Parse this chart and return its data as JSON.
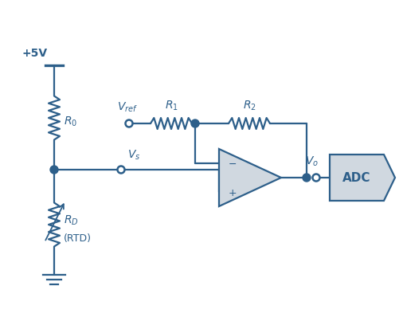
{
  "bg_color": "#ffffff",
  "circuit_color": "#2d5f8a",
  "adc_fill": "#d0d8e0",
  "opamp_fill": "#d0d8e0",
  "wire_lw": 1.6,
  "resistor_lw": 1.6,
  "supply_voltage": "+5V",
  "labels": {
    "RTD": "(RTD)",
    "ADC": "ADC",
    "minus": "−",
    "plus": "+"
  },
  "font_size_label": 10,
  "figsize": [
    5.02,
    4.03
  ],
  "dpi": 100
}
